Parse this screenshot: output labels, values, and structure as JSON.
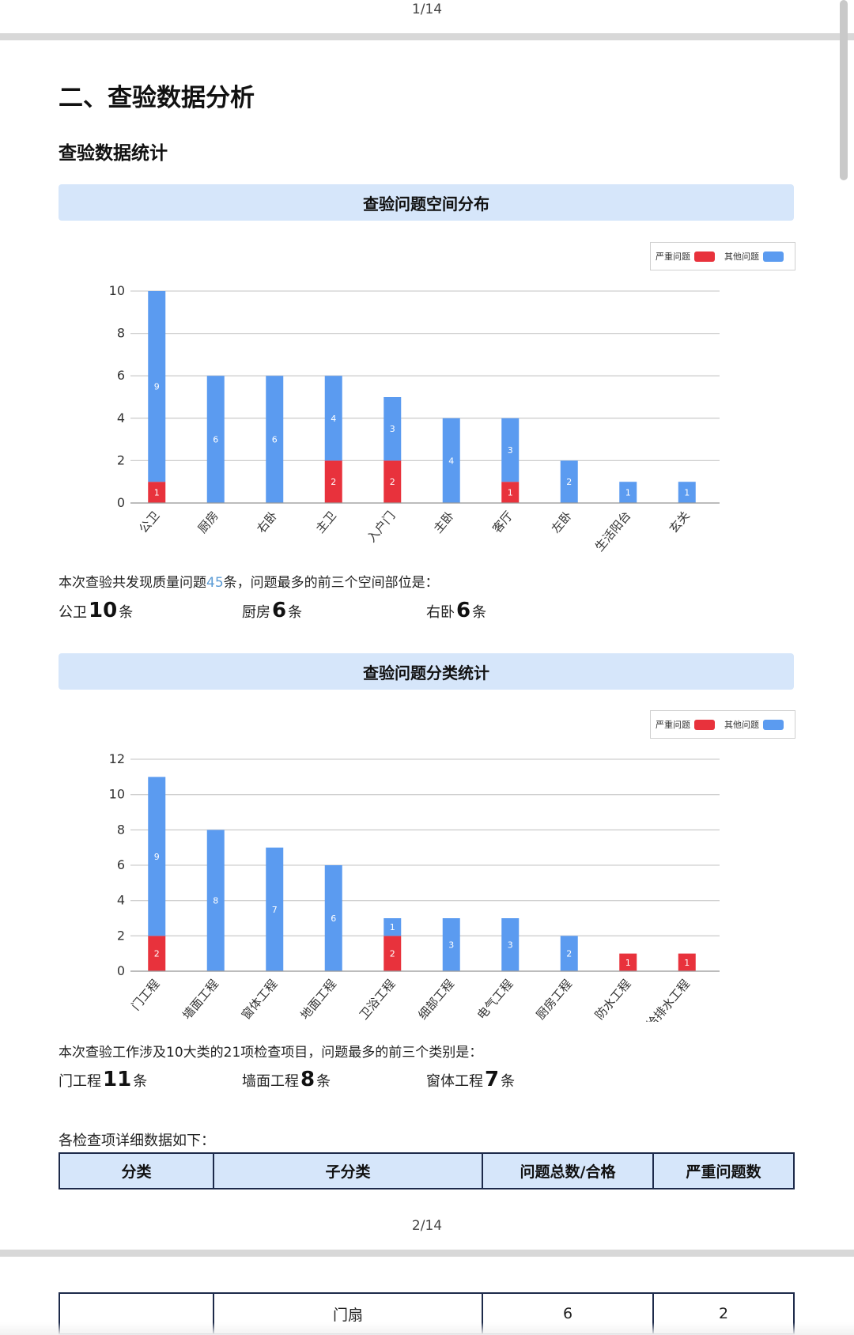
{
  "page": {
    "page_label_top": "1/14",
    "page_label_mid": "2/14"
  },
  "section_title": "二、查验数据分析",
  "subsection_title": "查验数据统计",
  "legend": {
    "severe": "严重问题",
    "other": "其他问题"
  },
  "colors": {
    "severe": "#e8323c",
    "other": "#5b9bf0",
    "banner": "#d6e6fa",
    "highlight": "#5b9bd5"
  },
  "space_section": {
    "banner": "查验问题空间分布",
    "summary_prefix": "本次查验共发现质量问题",
    "summary_count": "45",
    "summary_suffix": "条，问题最多的前三个空间部位是：",
    "top": [
      {
        "name": "公卫",
        "count": "10",
        "unit": "条"
      },
      {
        "name": "厨房",
        "count": "6",
        "unit": "条"
      },
      {
        "name": "右卧",
        "count": "6",
        "unit": "条"
      }
    ]
  },
  "category_section": {
    "banner": "查验问题分类统计",
    "summary": "本次查验工作涉及10大类的21项检查项目，问题最多的前三个类别是：",
    "top": [
      {
        "name": "门工程",
        "count": "11",
        "unit": "条"
      },
      {
        "name": "墙面工程",
        "count": "8",
        "unit": "条"
      },
      {
        "name": "窗体工程",
        "count": "7",
        "unit": "条"
      }
    ]
  },
  "table_intro": "各检查项详细数据如下：",
  "table": {
    "headers": [
      "分类",
      "子分类",
      "问题总数/合格",
      "严重问题数"
    ],
    "row": [
      "",
      "门扇",
      "6",
      "2"
    ]
  },
  "chart_data": [
    {
      "type": "bar",
      "stacked": true,
      "categories": [
        "公卫",
        "厨房",
        "右卧",
        "主卫",
        "入户门",
        "主卧",
        "客厅",
        "左卧",
        "生活阳台",
        "玄关"
      ],
      "series": [
        {
          "name": "严重问题",
          "values": [
            1,
            0,
            0,
            2,
            2,
            0,
            1,
            0,
            0,
            0
          ]
        },
        {
          "name": "其他问题",
          "values": [
            9,
            6,
            6,
            4,
            3,
            4,
            3,
            2,
            1,
            1
          ]
        }
      ],
      "ylim": [
        0,
        10
      ],
      "yticks": [
        0,
        2,
        4,
        6,
        8,
        10
      ],
      "grid": true,
      "legend_position": "top-right"
    },
    {
      "type": "bar",
      "stacked": true,
      "categories": [
        "门工程",
        "墙面工程",
        "窗体工程",
        "地面工程",
        "卫浴工程",
        "细部工程",
        "电气工程",
        "厨房工程",
        "防水工程",
        "给排水工程"
      ],
      "series": [
        {
          "name": "严重问题",
          "values": [
            2,
            0,
            0,
            0,
            2,
            0,
            0,
            0,
            1,
            1
          ]
        },
        {
          "name": "其他问题",
          "values": [
            9,
            8,
            7,
            6,
            1,
            3,
            3,
            2,
            0,
            0
          ]
        }
      ],
      "ylim": [
        0,
        12
      ],
      "yticks": [
        0,
        2,
        4,
        6,
        8,
        10,
        12
      ],
      "grid": true,
      "legend_position": "top-right"
    }
  ]
}
